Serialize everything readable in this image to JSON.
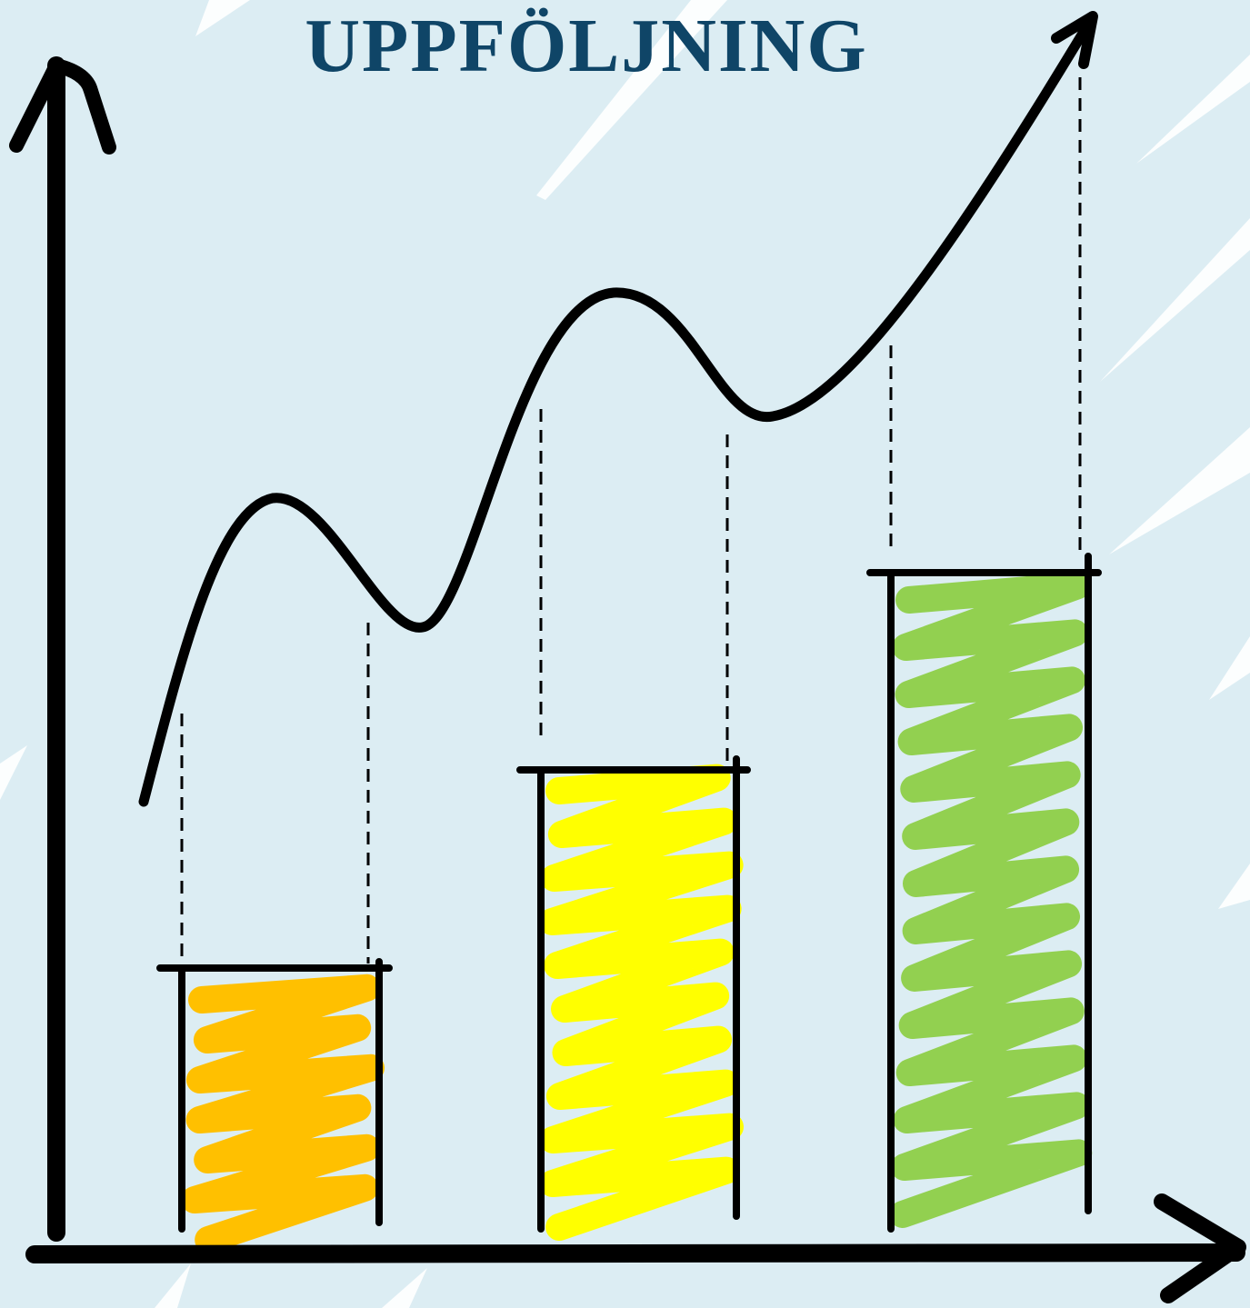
{
  "title": "UPPFÖLJNING"
}
